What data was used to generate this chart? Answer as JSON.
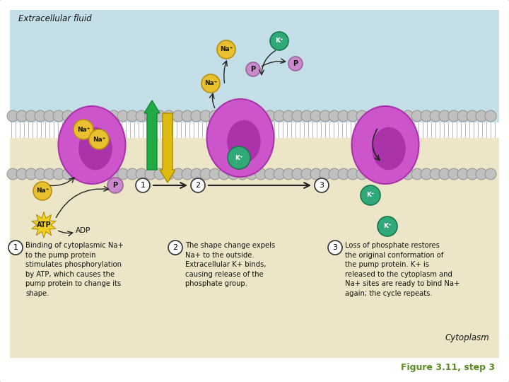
{
  "bg_extracellular": "#c5dfe8",
  "bg_cytoplasm": "#ede5c8",
  "membrane_band_color": "#d8d8d8",
  "membrane_dot_color": "#b8b8b8",
  "membrane_dot_edge": "#909090",
  "membrane_line_color": "#aaaaaa",
  "protein_color": "#cc55cc",
  "protein_dark": "#aa33aa",
  "na_color": "#e8c030",
  "na_edge": "#b89010",
  "k_color": "#30a878",
  "k_edge": "#187850",
  "p_color": "#cc88cc",
  "p_edge": "#996699",
  "atp_color": "#f0d020",
  "atp_edge": "#b09010",
  "green_arrow": "#22aa44",
  "yellow_arrow": "#ddbb10",
  "arrow_color": "#222222",
  "text_color": "#111111",
  "figure_label_color": "#5a8a20",
  "extracellular_label": "Extracellular fluid",
  "cytoplasm_label": "Cytoplasm",
  "figure_label": "Figure 3.11, step 3",
  "adp_text": "ADP",
  "step1_text": "Binding of cytoplasmic Na+\nto the pump protein\nstimulates phosphorylation\nby ATP, which causes the\npump protein to change its\nshape.",
  "step2_text": "The shape change expels\nNa+ to the outside.\nExtracellular K+ binds,\ncausing release of the\nphosphate group.",
  "step3_text": "Loss of phosphate restores\nthe original conformation of\nthe pump protein. K+ is\nreleased to the cytoplasm and\nNa+ sites are ready to bind Na+\nagain; the cycle repeats."
}
